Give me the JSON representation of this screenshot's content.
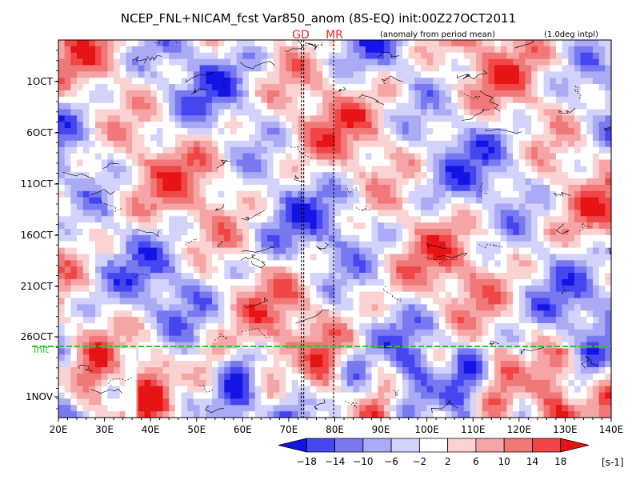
{
  "chart_data": {
    "type": "heatmap",
    "title": "NCEP_FNL+NICAM_fcst Var850_anom (8S-EQ) init:00Z27OCT2011",
    "subtitle_left": "(anomaly from period mean)",
    "subtitle_right": "(1.0deg intpl)",
    "xlabel": "",
    "ylabel": "",
    "x_ticks": [
      "20E",
      "30E",
      "40E",
      "50E",
      "60E",
      "70E",
      "80E",
      "90E",
      "100E",
      "110E",
      "120E",
      "130E",
      "140E"
    ],
    "y_ticks": [
      "1OCT",
      "6OCT",
      "11OCT",
      "16OCT",
      "21OCT",
      "26OCT",
      "1NOV"
    ],
    "xlim": [
      "20E",
      "140E"
    ],
    "init_label": "init",
    "init_line_color": "#22cc22",
    "markers": [
      {
        "label": "GD",
        "lon": "73E",
        "color": "#ee2222"
      },
      {
        "label": "MR",
        "lon": "80E",
        "color": "#ee2222"
      }
    ],
    "colorbar": {
      "levels": [
        "-18",
        "-14",
        "-10",
        "-6",
        "-2",
        "2",
        "6",
        "10",
        "14",
        "18"
      ],
      "unit": "[s-1]",
      "colors": [
        "#1414e6",
        "#4646f0",
        "#7878f0",
        "#aaaaf5",
        "#d2d2fa",
        "#ffffff",
        "#fad2d2",
        "#f5a5a5",
        "#f07878",
        "#f04646",
        "#e61414"
      ]
    }
  }
}
